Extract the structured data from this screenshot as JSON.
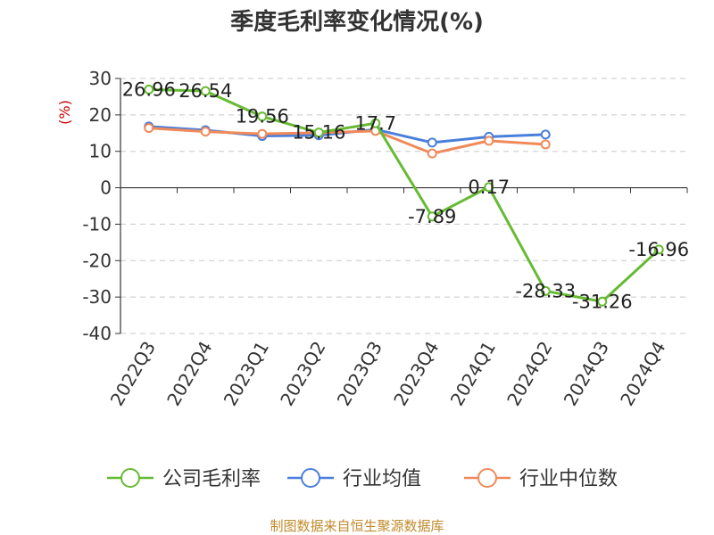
{
  "chart_data": {
    "type": "line",
    "title": "季度毛利率变化情况(%)",
    "ylabel": "(%)",
    "xlabel": "",
    "ylim": [
      -40,
      30
    ],
    "yticks": [
      30,
      20,
      10,
      0,
      -10,
      -20,
      -30,
      -40
    ],
    "categories": [
      "2022Q3",
      "2022Q4",
      "2023Q1",
      "2023Q2",
      "2023Q3",
      "2023Q4",
      "2024Q1",
      "2024Q2",
      "2024Q3",
      "2024Q4"
    ],
    "grid": true,
    "legend_position": "bottom",
    "series": [
      {
        "name": "公司毛利率",
        "color": "#66bb33",
        "values": [
          26.96,
          26.54,
          19.56,
          15.16,
          17.7,
          -7.89,
          0.17,
          -28.33,
          -31.26,
          -16.96
        ],
        "labels": [
          "26.96",
          "26.54",
          "19.56",
          "15.16",
          "17.7",
          "-7.89",
          "0.17",
          "-28.33",
          "-31.26",
          "-16.96"
        ]
      },
      {
        "name": "行业均值",
        "color": "#4a7fdb",
        "values": [
          16.8,
          15.8,
          14.2,
          14.4,
          16.0,
          12.4,
          14.0,
          14.6,
          null,
          null
        ]
      },
      {
        "name": "行业中位数",
        "color": "#f08a5a",
        "values": [
          16.4,
          15.4,
          14.8,
          15.1,
          15.6,
          9.4,
          12.9,
          11.9,
          null,
          null
        ]
      }
    ],
    "source_note": "制图数据来自恒生聚源数据库"
  }
}
